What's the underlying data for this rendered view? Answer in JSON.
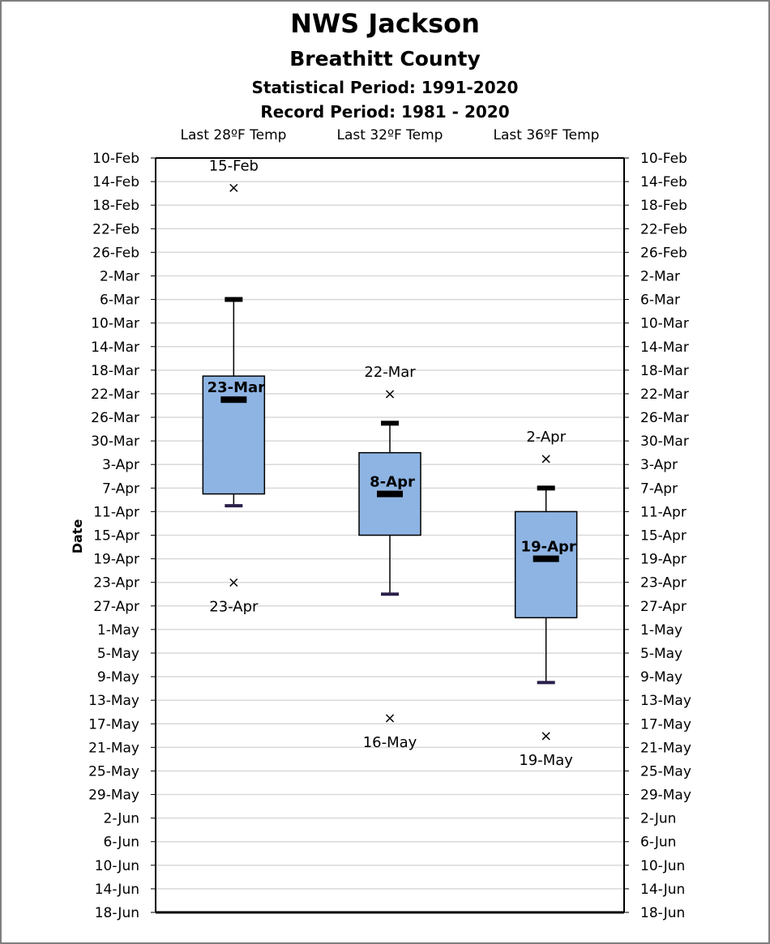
{
  "titles": {
    "line1": "NWS Jackson",
    "line2": "Breathitt County",
    "line3": "Statistical Period: 1991-2020",
    "line4": "Record Period: 1981 - 2020"
  },
  "chart_data": {
    "type": "boxplot",
    "ylabel": "Date",
    "y_ticks": [
      "10-Feb",
      "14-Feb",
      "18-Feb",
      "22-Feb",
      "26-Feb",
      "2-Mar",
      "6-Mar",
      "10-Mar",
      "14-Mar",
      "18-Mar",
      "22-Mar",
      "26-Mar",
      "30-Mar",
      "3-Apr",
      "7-Apr",
      "11-Apr",
      "15-Apr",
      "19-Apr",
      "23-Apr",
      "27-Apr",
      "1-May",
      "5-May",
      "9-May",
      "13-May",
      "17-May",
      "21-May",
      "25-May",
      "29-May",
      "2-Jun",
      "6-Jun",
      "10-Jun",
      "14-Jun",
      "18-Jun"
    ],
    "y_range": [
      "10-Feb",
      "18-Jun"
    ],
    "y_direction": "down",
    "grid": true,
    "categories": [
      "Last 28ºF Temp",
      "Last 32ºF Temp",
      "Last 36ºF Temp"
    ],
    "box_color": "#8EB4E3",
    "series": [
      {
        "category": "Last 28ºF Temp",
        "whisker_low": "6-Mar",
        "q1": "19-Mar",
        "median": "23-Mar",
        "q3": "8-Apr",
        "whisker_high": "10-Apr",
        "median_label": "23-Mar",
        "record_early": "15-Feb",
        "record_late": "23-Apr",
        "record_early_label": "15-Feb",
        "record_late_label": "23-Apr"
      },
      {
        "category": "Last 32ºF Temp",
        "whisker_low": "27-Mar",
        "q1": "1-Apr",
        "median": "8-Apr",
        "q3": "15-Apr",
        "whisker_high": "25-Apr",
        "median_label": "8-Apr",
        "record_early": "22-Mar",
        "record_late": "16-May",
        "record_early_label": "22-Mar",
        "record_late_label": "16-May"
      },
      {
        "category": "Last 36ºF Temp",
        "whisker_low": "7-Apr",
        "q1": "11-Apr",
        "median": "19-Apr",
        "q3": "29-Apr",
        "whisker_high": "10-May",
        "median_label": "19-Apr",
        "record_early": "2-Apr",
        "record_late": "19-May",
        "record_early_label": "2-Apr",
        "record_late_label": "19-May"
      }
    ]
  }
}
